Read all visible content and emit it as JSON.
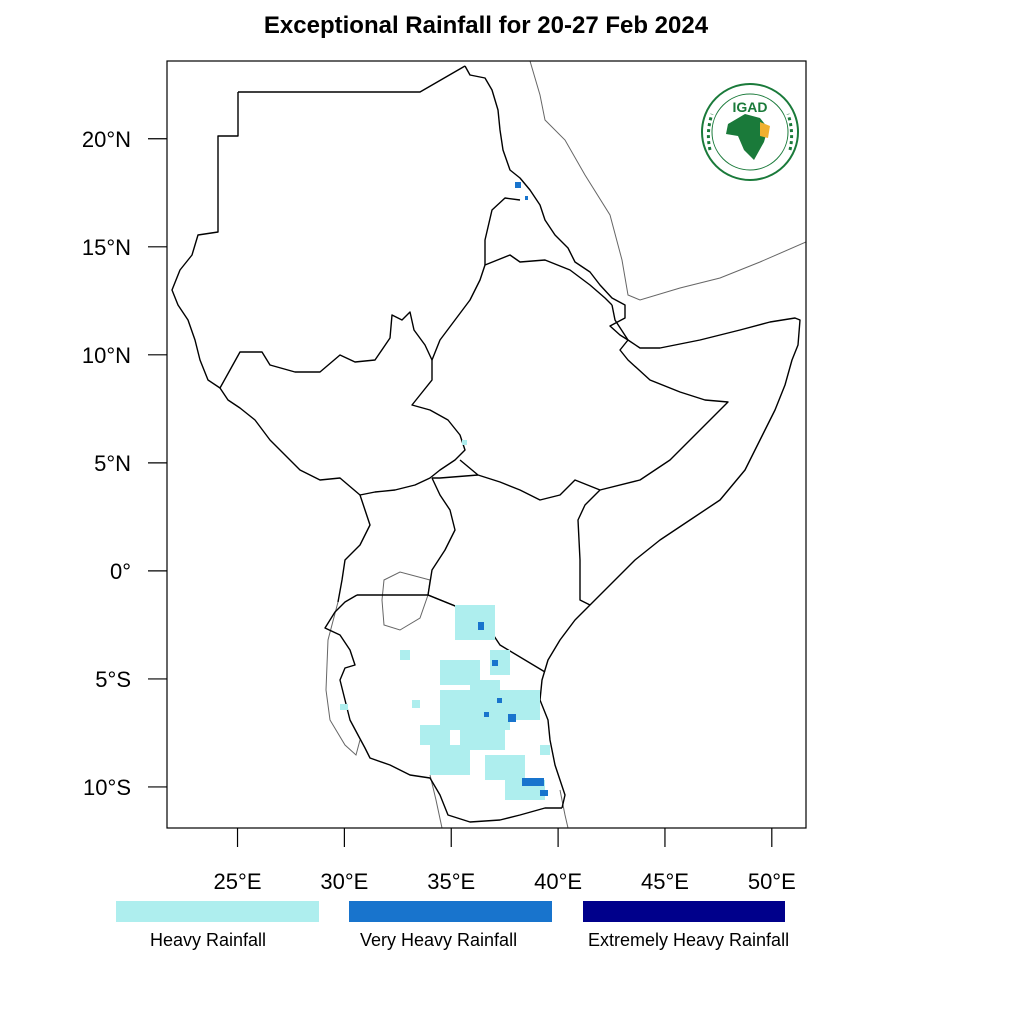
{
  "title": "Exceptional Rainfall for 20-27 Feb 2024",
  "axes": {
    "lat_ticks": [
      {
        "value": 20,
        "label": "20°N"
      },
      {
        "value": 15,
        "label": "15°N"
      },
      {
        "value": 10,
        "label": "10°N"
      },
      {
        "value": 5,
        "label": "5°N"
      },
      {
        "value": 0,
        "label": "0°"
      },
      {
        "value": -5,
        "label": "5°S"
      },
      {
        "value": -10,
        "label": "10°S"
      }
    ],
    "lon_ticks": [
      {
        "value": 25,
        "label": "25°E"
      },
      {
        "value": 30,
        "label": "30°E"
      },
      {
        "value": 35,
        "label": "35°E"
      },
      {
        "value": 40,
        "label": "40°E"
      },
      {
        "value": 45,
        "label": "45°E"
      },
      {
        "value": 50,
        "label": "50°E"
      }
    ],
    "lon_range": [
      21.7,
      51.6
    ],
    "lat_range": [
      -11.9,
      23.6
    ]
  },
  "logo": {
    "text": "IGAD",
    "color": "#1a7a3a",
    "accent": "#f0b030"
  },
  "legend": [
    {
      "label": "Heavy Rainfall",
      "color": "#aeeeee"
    },
    {
      "label": "Very Heavy Rainfall",
      "color": "#1874cd"
    },
    {
      "label": "Extremely Heavy Rainfall",
      "color": "#00008b"
    }
  ]
}
